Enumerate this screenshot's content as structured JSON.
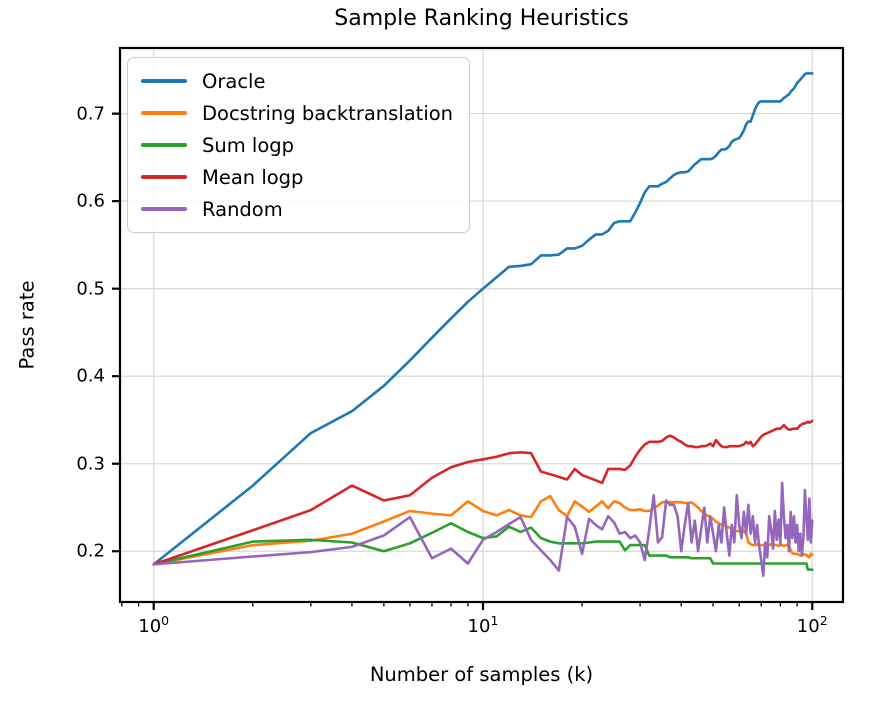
{
  "chart_data": {
    "type": "line",
    "title": "Sample Ranking Heuristics",
    "xlabel": "Number of samples (k)",
    "ylabel": "Pass rate",
    "x_scale": "log",
    "grid": true,
    "legend_position": "upper left",
    "xlim": [
      0.79,
      124
    ],
    "ylim": [
      0.142,
      0.775
    ],
    "x_ticks": [
      {
        "value": 1,
        "base": "10",
        "exp": "0"
      },
      {
        "value": 10,
        "base": "10",
        "exp": "1"
      },
      {
        "value": 100,
        "base": "10",
        "exp": "2"
      }
    ],
    "y_ticks": [
      0.2,
      0.3,
      0.4,
      0.5,
      0.6,
      0.7
    ],
    "y_tick_labels": [
      "0.2",
      "0.3",
      "0.4",
      "0.5",
      "0.6",
      "0.7"
    ],
    "x": [
      1,
      2,
      3,
      4,
      5,
      6,
      7,
      8,
      9,
      10,
      11,
      12,
      13,
      14,
      15,
      16,
      17,
      18,
      19,
      20,
      21,
      22,
      23,
      24,
      25,
      26,
      27,
      28,
      29,
      30,
      31,
      32,
      33,
      34,
      35,
      36,
      37,
      38,
      39,
      40,
      41,
      42,
      43,
      44,
      45,
      46,
      47,
      48,
      49,
      50,
      51,
      52,
      53,
      54,
      55,
      56,
      57,
      58,
      59,
      60,
      61,
      62,
      63,
      64,
      65,
      66,
      67,
      68,
      69,
      70,
      71,
      72,
      73,
      74,
      75,
      76,
      77,
      78,
      79,
      80,
      81,
      82,
      83,
      84,
      85,
      86,
      87,
      88,
      89,
      90,
      91,
      92,
      93,
      94,
      95,
      96,
      97,
      98,
      99,
      100
    ],
    "series": [
      {
        "name": "Oracle",
        "color": "#1f77b4",
        "values": [
          0.185,
          0.275,
          0.335,
          0.36,
          0.389,
          0.418,
          0.444,
          0.466,
          0.485,
          0.5,
          0.513,
          0.525,
          0.526,
          0.528,
          0.538,
          0.538,
          0.539,
          0.546,
          0.546,
          0.549,
          0.556,
          0.562,
          0.562,
          0.566,
          0.575,
          0.577,
          0.577,
          0.577,
          0.587,
          0.598,
          0.61,
          0.617,
          0.617,
          0.617,
          0.62,
          0.622,
          0.626,
          0.63,
          0.632,
          0.633,
          0.633,
          0.634,
          0.638,
          0.642,
          0.645,
          0.648,
          0.648,
          0.648,
          0.648,
          0.649,
          0.652,
          0.656,
          0.659,
          0.659,
          0.66,
          0.663,
          0.668,
          0.67,
          0.671,
          0.672,
          0.676,
          0.681,
          0.688,
          0.691,
          0.691,
          0.698,
          0.705,
          0.71,
          0.713,
          0.714,
          0.714,
          0.714,
          0.714,
          0.714,
          0.714,
          0.714,
          0.714,
          0.714,
          0.714,
          0.714,
          0.716,
          0.718,
          0.719,
          0.721,
          0.722,
          0.725,
          0.727,
          0.729,
          0.732,
          0.735,
          0.737,
          0.739,
          0.741,
          0.743,
          0.745,
          0.746,
          0.746,
          0.746,
          0.746,
          0.746
        ]
      },
      {
        "name": "Docstring backtranslation",
        "color": "#ff7f0e",
        "values": [
          0.185,
          0.207,
          0.212,
          0.22,
          0.234,
          0.246,
          0.243,
          0.241,
          0.257,
          0.246,
          0.241,
          0.247,
          0.241,
          0.239,
          0.257,
          0.263,
          0.247,
          0.24,
          0.257,
          0.251,
          0.245,
          0.251,
          0.257,
          0.249,
          0.257,
          0.255,
          0.25,
          0.247,
          0.247,
          0.248,
          0.246,
          0.246,
          0.249,
          0.252,
          0.256,
          0.256,
          0.256,
          0.256,
          0.256,
          0.256,
          0.255,
          0.255,
          0.256,
          0.253,
          0.25,
          0.246,
          0.243,
          0.241,
          0.239,
          0.237,
          0.234,
          0.232,
          0.23,
          0.23,
          0.228,
          0.227,
          0.225,
          0.224,
          0.223,
          0.223,
          0.222,
          0.223,
          0.22,
          0.21,
          0.208,
          0.207,
          0.207,
          0.208,
          0.207,
          0.207,
          0.207,
          0.206,
          0.207,
          0.207,
          0.208,
          0.207,
          0.207,
          0.207,
          0.206,
          0.207,
          0.207,
          0.206,
          0.207,
          0.207,
          0.206,
          0.201,
          0.198,
          0.197,
          0.197,
          0.197,
          0.196,
          0.195,
          0.196,
          0.197,
          0.196,
          0.196,
          0.194,
          0.193,
          0.197,
          0.196
        ]
      },
      {
        "name": "Sum logp",
        "color": "#2ca02c",
        "values": [
          0.185,
          0.211,
          0.213,
          0.21,
          0.2,
          0.209,
          0.221,
          0.232,
          0.222,
          0.215,
          0.217,
          0.228,
          0.222,
          0.227,
          0.215,
          0.211,
          0.209,
          0.209,
          0.209,
          0.209,
          0.21,
          0.211,
          0.211,
          0.211,
          0.211,
          0.211,
          0.201,
          0.207,
          0.207,
          0.207,
          0.207,
          0.195,
          0.195,
          0.195,
          0.195,
          0.195,
          0.193,
          0.193,
          0.193,
          0.193,
          0.193,
          0.193,
          0.192,
          0.192,
          0.192,
          0.192,
          0.192,
          0.192,
          0.192,
          0.186,
          0.186,
          0.186,
          0.186,
          0.186,
          0.186,
          0.186,
          0.186,
          0.186,
          0.186,
          0.186,
          0.186,
          0.186,
          0.186,
          0.186,
          0.186,
          0.186,
          0.186,
          0.186,
          0.186,
          0.186,
          0.186,
          0.186,
          0.186,
          0.186,
          0.186,
          0.186,
          0.186,
          0.186,
          0.186,
          0.186,
          0.186,
          0.186,
          0.186,
          0.186,
          0.186,
          0.186,
          0.186,
          0.186,
          0.186,
          0.186,
          0.186,
          0.186,
          0.186,
          0.186,
          0.186,
          0.186,
          0.179,
          0.179,
          0.179,
          0.179
        ]
      },
      {
        "name": "Mean logp",
        "color": "#d62728",
        "values": [
          0.185,
          0.224,
          0.247,
          0.275,
          0.258,
          0.264,
          0.284,
          0.296,
          0.302,
          0.305,
          0.308,
          0.312,
          0.313,
          0.312,
          0.291,
          0.288,
          0.285,
          0.282,
          0.294,
          0.287,
          0.284,
          0.281,
          0.278,
          0.294,
          0.294,
          0.294,
          0.293,
          0.298,
          0.308,
          0.316,
          0.322,
          0.325,
          0.325,
          0.325,
          0.326,
          0.33,
          0.332,
          0.33,
          0.327,
          0.325,
          0.322,
          0.32,
          0.32,
          0.319,
          0.319,
          0.32,
          0.32,
          0.321,
          0.323,
          0.32,
          0.327,
          0.323,
          0.32,
          0.319,
          0.319,
          0.32,
          0.32,
          0.32,
          0.32,
          0.32,
          0.321,
          0.322,
          0.325,
          0.323,
          0.325,
          0.32,
          0.322,
          0.325,
          0.328,
          0.331,
          0.333,
          0.334,
          0.335,
          0.336,
          0.337,
          0.338,
          0.339,
          0.34,
          0.34,
          0.34,
          0.342,
          0.344,
          0.342,
          0.34,
          0.339,
          0.339,
          0.34,
          0.34,
          0.34,
          0.34,
          0.342,
          0.344,
          0.345,
          0.346,
          0.346,
          0.347,
          0.348,
          0.347,
          0.348,
          0.349
        ]
      },
      {
        "name": "Random",
        "color": "#9467bd",
        "values": [
          0.185,
          0.194,
          0.199,
          0.205,
          0.218,
          0.239,
          0.192,
          0.203,
          0.186,
          0.213,
          0.222,
          0.231,
          0.239,
          0.213,
          0.201,
          0.19,
          0.178,
          0.239,
          0.228,
          0.197,
          0.237,
          0.23,
          0.225,
          0.24,
          0.233,
          0.22,
          0.222,
          0.215,
          0.218,
          0.21,
          0.19,
          0.225,
          0.264,
          0.21,
          0.216,
          0.258,
          0.253,
          0.253,
          0.24,
          0.2,
          0.23,
          0.255,
          0.21,
          0.235,
          0.2,
          0.225,
          0.25,
          0.21,
          0.24,
          0.22,
          0.2,
          0.23,
          0.21,
          0.25,
          0.22,
          0.195,
          0.23,
          0.21,
          0.264,
          0.23,
          0.215,
          0.245,
          0.22,
          0.253,
          0.22,
          0.24,
          0.21,
          0.23,
          0.205,
          0.19,
          0.172,
          0.21,
          0.193,
          0.24,
          0.225,
          0.203,
          0.246,
          0.213,
          0.236,
          0.208,
          0.278,
          0.24,
          0.215,
          0.23,
          0.2,
          0.245,
          0.215,
          0.24,
          0.21,
          0.23,
          0.2,
          0.22,
          0.195,
          0.215,
          0.27,
          0.24,
          0.213,
          0.26,
          0.21,
          0.235
        ]
      }
    ],
    "colors": {
      "grid": "#d9d9d9",
      "spine": "#000000",
      "text": "#000000",
      "legend_border": "#cccccc"
    }
  }
}
